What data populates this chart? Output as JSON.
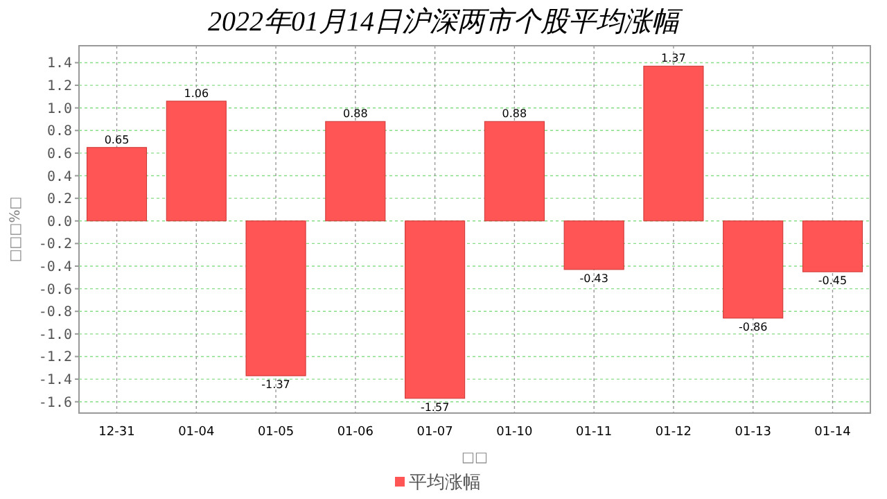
{
  "chart_data": {
    "type": "bar",
    "title": "2022年01月14日沪深两市个股平均涨幅",
    "xlabel": "□□",
    "ylabel": "□□□%□",
    "categories": [
      "12-31",
      "01-04",
      "01-05",
      "01-06",
      "01-07",
      "01-10",
      "01-11",
      "01-12",
      "01-13",
      "01-14"
    ],
    "series": [
      {
        "name": "平均涨幅",
        "color": "#ff5555",
        "values": [
          0.65,
          1.06,
          -1.37,
          0.88,
          -1.57,
          0.88,
          -0.43,
          1.37,
          -0.86,
          -0.45
        ]
      }
    ],
    "data_labels": true,
    "ylim": [
      -1.7,
      1.55
    ],
    "yticks": [
      {
        "value": 1.4,
        "label": "1.4"
      },
      {
        "value": 1.2,
        "label": "1.2"
      },
      {
        "value": 1,
        "label": "1.0"
      },
      {
        "value": 0.8,
        "label": "0.8"
      },
      {
        "value": 0.6,
        "label": "0.6"
      },
      {
        "value": 0.4,
        "label": "0.4"
      },
      {
        "value": 0.2,
        "label": "0.2"
      },
      {
        "value": 0,
        "label": "0.0"
      },
      {
        "value": -0.2,
        "label": "-0.2"
      },
      {
        "value": -0.4,
        "label": "-0.4"
      },
      {
        "value": -0.6,
        "label": "-0.6"
      },
      {
        "value": -0.8,
        "label": "-0.8"
      },
      {
        "value": -1,
        "label": "-1.0"
      },
      {
        "value": -1.2,
        "label": "-1.2"
      },
      {
        "value": -1.4,
        "label": "-1.4"
      },
      {
        "value": -1.6,
        "label": "-1.6"
      }
    ],
    "grid": true,
    "legend": "bottom"
  }
}
